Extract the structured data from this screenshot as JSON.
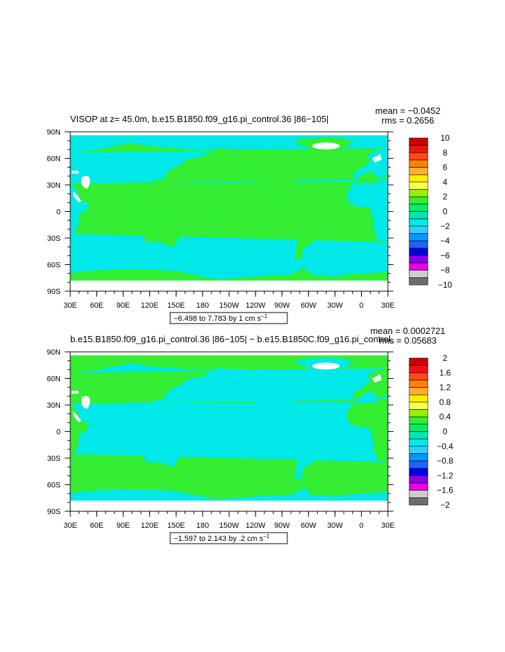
{
  "chart_data": [
    {
      "type": "heatmap",
      "projection": "cylindrical-equidistant",
      "title": "VISOP at z=   45.0m, b.e15.B1850.f09_g16.pi_control.36 |86−105|",
      "stats": {
        "mean_label": "mean = −0.0452",
        "rms_label": "rms = 0.2656"
      },
      "x_tick_labels": [
        "30E",
        "60E",
        "90E",
        "120E",
        "150E",
        "180",
        "150W",
        "120W",
        "90W",
        "60W",
        "30W",
        "0",
        "30E"
      ],
      "y_tick_labels": [
        "90N",
        "60N",
        "30N",
        "0",
        "30S",
        "60S",
        "90S"
      ],
      "contour_info": "−6.498 to 7.783 by 1 cm s",
      "contour_unit_exp": "−1",
      "colorbar": {
        "labels": [
          "10",
          "8",
          "6",
          "4",
          "2",
          "0",
          "−2",
          "−4",
          "−6",
          "−8",
          "−10"
        ],
        "colors": [
          "#cc0000",
          "#ee1111",
          "#ff4a1a",
          "#ff8000",
          "#ffad33",
          "#ffee00",
          "#ffff4d",
          "#99ee00",
          "#33ee33",
          "#00ee66",
          "#00e6b3",
          "#00e8e8",
          "#33ccff",
          "#0099ff",
          "#1a66ff",
          "#0000dd",
          "#8c00e6",
          "#e600e6",
          "#cccccc",
          "#6e6e6e"
        ]
      },
      "dominant_field": {
        "ocean_value_range": [
          -1,
          1
        ],
        "ocean_color": "#00e8e8",
        "land_color": "#33ee33"
      }
    },
    {
      "type": "heatmap",
      "projection": "cylindrical-equidistant",
      "title": "b.e15.B1850.f09_g16.pi_control.36 |86−105| − b.e15.B1850C.f09_g16.pi_control.",
      "stats": {
        "mean_label": "mean = 0.0002721",
        "rms_label": "rms = 0.05683"
      },
      "x_tick_labels": [
        "30E",
        "60E",
        "90E",
        "120E",
        "150E",
        "180",
        "150W",
        "120W",
        "90W",
        "60W",
        "30W",
        "0",
        "30E"
      ],
      "y_tick_labels": [
        "90N",
        "60N",
        "30N",
        "0",
        "30S",
        "60S",
        "90S"
      ],
      "contour_info": "−1.597 to 2.143 by .2 cm s",
      "contour_unit_exp": "−1",
      "colorbar": {
        "labels": [
          "2",
          "1.6",
          "1.2",
          "0.8",
          "0.4",
          "0",
          "−0.4",
          "−0.8",
          "−1.2",
          "−1.6",
          "−2"
        ],
        "colors": [
          "#cc0000",
          "#ee1111",
          "#ff4a1a",
          "#ff8000",
          "#ffad33",
          "#ffee00",
          "#ffff4d",
          "#99ee00",
          "#33ee33",
          "#00ee66",
          "#00e6b3",
          "#00e8e8",
          "#33ccff",
          "#0099ff",
          "#1a66ff",
          "#0000dd",
          "#8c00e6",
          "#e600e6",
          "#cccccc",
          "#6e6e6e"
        ]
      },
      "dominant_field": {
        "ocean_value_range": [
          -0.2,
          0.2
        ],
        "ocean_color": "#33ee33",
        "land_color": "#00e8e8"
      }
    }
  ]
}
